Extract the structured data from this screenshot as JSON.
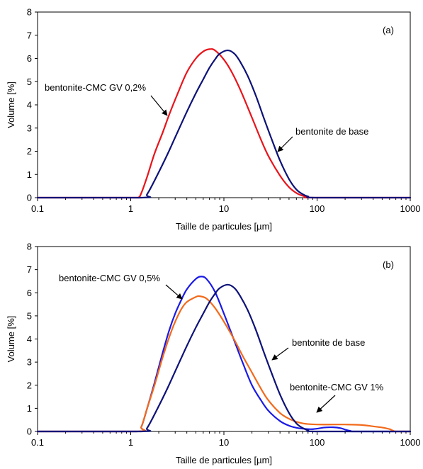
{
  "chart_data": [
    {
      "type": "line",
      "panel_label": "(a)",
      "xlabel": "Taille de particules  [µm]",
      "ylabel": "Volume [%]",
      "x_scale": "log",
      "xlim": [
        0.1,
        1000
      ],
      "ylim": [
        0,
        8
      ],
      "x_ticks": [
        "0.1",
        "1",
        "10",
        "100",
        "1000"
      ],
      "y_ticks": [
        "0",
        "1",
        "2",
        "3",
        "4",
        "5",
        "6",
        "7",
        "8"
      ],
      "grid": false,
      "annotations": [
        {
          "text": "bentonite-CMC GV 0,2%",
          "series": 0
        },
        {
          "text": "bentonite de base",
          "series": 1
        }
      ],
      "series": [
        {
          "color": "#e8141b",
          "x": [
            0.1,
            1.0,
            1.2,
            1.3,
            1.5,
            1.8,
            2.2,
            2.6,
            3.2,
            4.0,
            5.0,
            6.0,
            7.0,
            8.0,
            10,
            12,
            15,
            20,
            25,
            30,
            40,
            50,
            60,
            70,
            80,
            90,
            1000
          ],
          "y": [
            0,
            0,
            0,
            0.2,
            0.9,
            1.9,
            2.8,
            3.6,
            4.5,
            5.4,
            6.0,
            6.3,
            6.4,
            6.35,
            5.95,
            5.45,
            4.65,
            3.45,
            2.5,
            1.8,
            0.95,
            0.45,
            0.2,
            0.08,
            0.03,
            0,
            0
          ]
        },
        {
          "color": "#0d1278",
          "x": [
            0.1,
            1.3,
            1.5,
            2.0,
            2.5,
            3.0,
            4.0,
            5.0,
            6.0,
            7.0,
            8.0,
            9.0,
            11,
            13,
            15,
            18,
            22,
            27,
            32,
            40,
            50,
            60,
            70,
            80,
            100,
            1000
          ],
          "y": [
            0,
            0,
            0.15,
            1.1,
            1.9,
            2.6,
            3.7,
            4.5,
            5.1,
            5.6,
            5.95,
            6.2,
            6.35,
            6.2,
            5.85,
            5.25,
            4.4,
            3.4,
            2.6,
            1.6,
            0.8,
            0.35,
            0.15,
            0.05,
            0,
            0
          ]
        }
      ]
    },
    {
      "type": "line",
      "panel_label": "(b)",
      "xlabel": "Taille de particules  [µm]",
      "ylabel": "Volume [%]",
      "x_scale": "log",
      "xlim": [
        0.1,
        1000
      ],
      "ylim": [
        0,
        8
      ],
      "x_ticks": [
        "0.1",
        "1",
        "10",
        "100",
        "1000"
      ],
      "y_ticks": [
        "0",
        "1",
        "2",
        "3",
        "4",
        "5",
        "6",
        "7",
        "8"
      ],
      "grid": false,
      "annotations": [
        {
          "text": "bentonite-CMC GV 0,5%",
          "series": 0
        },
        {
          "text": "bentonite de base",
          "series": 2
        },
        {
          "text": "bentonite-CMC GV 1%",
          "series": 1
        }
      ],
      "series": [
        {
          "color": "#1a1ae6",
          "x": [
            0.1,
            1.15,
            1.3,
            1.5,
            1.8,
            2.2,
            2.6,
            3.0,
            3.5,
            4.0,
            5.0,
            5.7,
            6.5,
            8.0,
            10,
            13,
            16,
            20,
            25,
            30,
            40,
            50,
            60,
            70,
            80,
            90,
            100,
            120,
            150,
            180,
            200,
            230,
            250,
            1000
          ],
          "y": [
            0,
            0,
            0.2,
            1.0,
            2.1,
            3.4,
            4.4,
            5.1,
            5.7,
            6.15,
            6.6,
            6.7,
            6.6,
            6.05,
            5.1,
            3.9,
            2.95,
            2.0,
            1.35,
            0.9,
            0.45,
            0.25,
            0.16,
            0.12,
            0.1,
            0.1,
            0.12,
            0.17,
            0.18,
            0.14,
            0.08,
            0.02,
            0,
            0
          ]
        },
        {
          "color": "#f26a1b",
          "x": [
            0.1,
            1.15,
            1.3,
            1.5,
            1.8,
            2.2,
            2.6,
            3.0,
            3.5,
            4.0,
            5.0,
            5.5,
            6.5,
            8.0,
            10,
            13,
            16,
            20,
            25,
            30,
            40,
            50,
            60,
            70,
            80,
            100,
            150,
            200,
            300,
            400,
            500,
            600,
            700,
            1000
          ],
          "y": [
            0,
            0,
            0.2,
            1.0,
            2.0,
            3.2,
            4.1,
            4.75,
            5.3,
            5.6,
            5.82,
            5.85,
            5.75,
            5.35,
            4.75,
            3.95,
            3.25,
            2.55,
            1.85,
            1.35,
            0.8,
            0.55,
            0.42,
            0.35,
            0.32,
            0.3,
            0.3,
            0.3,
            0.28,
            0.22,
            0.17,
            0.1,
            0,
            0
          ]
        },
        {
          "color": "#0d1278",
          "x": [
            0.1,
            1.3,
            1.5,
            2.0,
            2.5,
            3.0,
            4.0,
            5.0,
            6.0,
            7.0,
            8.0,
            9.0,
            11,
            13,
            15,
            18,
            22,
            27,
            32,
            40,
            50,
            60,
            70,
            80,
            100,
            1000
          ],
          "y": [
            0,
            0,
            0.15,
            1.1,
            1.9,
            2.6,
            3.7,
            4.5,
            5.1,
            5.6,
            5.95,
            6.2,
            6.35,
            6.2,
            5.85,
            5.25,
            4.4,
            3.4,
            2.6,
            1.6,
            0.8,
            0.35,
            0.15,
            0.05,
            0,
            0
          ]
        }
      ]
    }
  ]
}
